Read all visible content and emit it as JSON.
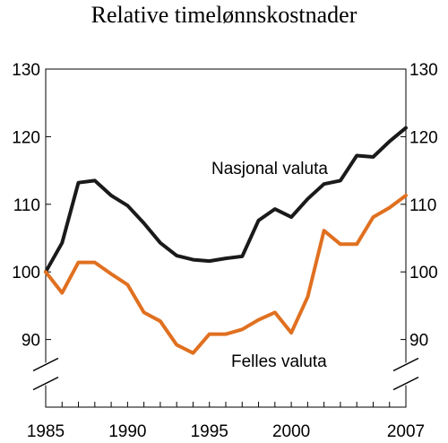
{
  "chart_data": {
    "type": "line",
    "title": "Relative timelønnskostnader",
    "xlabel": "",
    "ylabel": "",
    "x": [
      1985,
      1986,
      1987,
      1988,
      1989,
      1990,
      1991,
      1992,
      1993,
      1994,
      1995,
      1996,
      1997,
      1998,
      1999,
      2000,
      2001,
      2002,
      2003,
      2004,
      2005,
      2006,
      2007
    ],
    "x_tick_labels": [
      "1985",
      "1990",
      "1995",
      "2000",
      "2007"
    ],
    "y_tick_labels": [
      "90",
      "100",
      "110",
      "120",
      "130"
    ],
    "ylim": [
      80,
      130
    ],
    "axis_break": true,
    "grid": false,
    "series": [
      {
        "name": "Nasjonal valuta",
        "color": "#1a1a1a",
        "values": [
          100.0,
          104.3,
          113.2,
          113.5,
          111.3,
          109.8,
          107.2,
          104.3,
          102.4,
          101.8,
          101.6,
          102.0,
          102.3,
          107.6,
          109.3,
          108.1,
          110.8,
          113.0,
          113.5,
          117.2,
          117.0,
          119.3,
          121.3
        ]
      },
      {
        "name": "Felles valuta",
        "color": "#e07020",
        "values": [
          100.0,
          96.9,
          101.4,
          101.4,
          99.7,
          98.1,
          94.0,
          92.7,
          89.2,
          88.0,
          90.8,
          90.8,
          91.5,
          92.9,
          94.0,
          91.0,
          96.3,
          106.1,
          104.1,
          104.1,
          108.1,
          109.5,
          111.3
        ]
      }
    ]
  }
}
